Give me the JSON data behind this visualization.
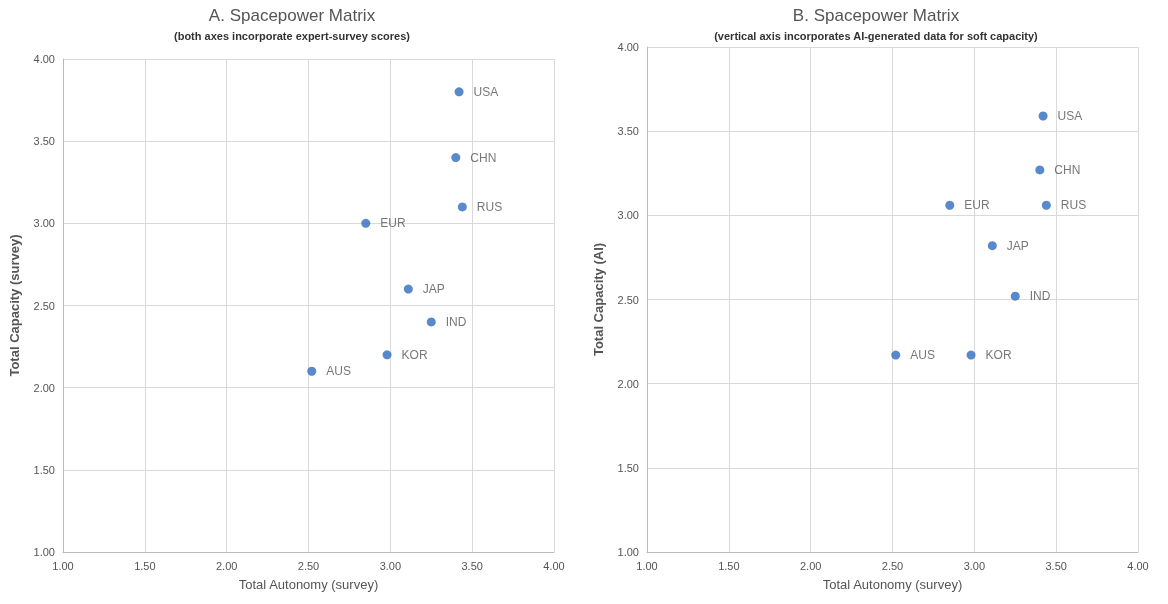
{
  "chart_data": [
    {
      "type": "scatter",
      "title": "A. Spacepower Matrix",
      "subtitle": "(both axes incorporate expert-survey scores)",
      "xlabel": "Total Autonomy (survey)",
      "ylabel": "Total Capacity (survey)",
      "xlim": [
        1,
        4
      ],
      "ylim": [
        1,
        4
      ],
      "xticks": [
        {
          "value": 1,
          "label": "1.00"
        },
        {
          "value": 1.5,
          "label": "1.50"
        },
        {
          "value": 2,
          "label": "2.00"
        },
        {
          "value": 2.5,
          "label": "2.50"
        },
        {
          "value": 3,
          "label": "3.00"
        },
        {
          "value": 3.5,
          "label": "3.50"
        },
        {
          "value": 4,
          "label": "4.00"
        }
      ],
      "yticks": [
        {
          "value": 1,
          "label": "1.00"
        },
        {
          "value": 1.5,
          "label": "1.50"
        },
        {
          "value": 2,
          "label": "2.00"
        },
        {
          "value": 2.5,
          "label": "2.50"
        },
        {
          "value": 3,
          "label": "3.00"
        },
        {
          "value": 3.5,
          "label": "3.50"
        },
        {
          "value": 4,
          "label": "4.00"
        }
      ],
      "grid": true,
      "legend": false,
      "marker": "circle",
      "series": [
        {
          "name": "USA",
          "color": "#2e6bbf",
          "x": [
            3.42
          ],
          "values": [
            3.8
          ]
        },
        {
          "name": "CHN",
          "color": "#2e6bbf",
          "x": [
            3.4
          ],
          "values": [
            3.4
          ]
        },
        {
          "name": "RUS",
          "color": "#2e6bbf",
          "x": [
            3.44
          ],
          "values": [
            3.1
          ]
        },
        {
          "name": "EUR",
          "color": "#2e6bbf",
          "x": [
            2.85
          ],
          "values": [
            3.0
          ]
        },
        {
          "name": "JAP",
          "color": "#2e6bbf",
          "x": [
            3.11
          ],
          "values": [
            2.6
          ]
        },
        {
          "name": "IND",
          "color": "#2e6bbf",
          "x": [
            3.25
          ],
          "values": [
            2.4
          ]
        },
        {
          "name": "KOR",
          "color": "#2e6bbf",
          "x": [
            2.98
          ],
          "values": [
            2.2
          ]
        },
        {
          "name": "AUS",
          "color": "#2e6bbf",
          "x": [
            2.52
          ],
          "values": [
            2.1
          ]
        }
      ]
    },
    {
      "type": "scatter",
      "title": "B. Spacepower Matrix",
      "subtitle": "(vertical axis incorporates AI-generated data for soft capacity)",
      "xlabel": "Total Autonomy (survey)",
      "ylabel": "Total Capacity (AI)",
      "xlim": [
        1,
        4
      ],
      "ylim": [
        1,
        4
      ],
      "xticks": [
        {
          "value": 1,
          "label": "1.00"
        },
        {
          "value": 1.5,
          "label": "1.50"
        },
        {
          "value": 2,
          "label": "2.00"
        },
        {
          "value": 2.5,
          "label": "2.50"
        },
        {
          "value": 3,
          "label": "3.00"
        },
        {
          "value": 3.5,
          "label": "3.50"
        },
        {
          "value": 4,
          "label": "4.00"
        }
      ],
      "yticks": [
        {
          "value": 1,
          "label": "1.00"
        },
        {
          "value": 1.5,
          "label": "1.50"
        },
        {
          "value": 2,
          "label": "2.00"
        },
        {
          "value": 2.5,
          "label": "2.50"
        },
        {
          "value": 3,
          "label": "3.00"
        },
        {
          "value": 3.5,
          "label": "3.50"
        },
        {
          "value": 4,
          "label": "4.00"
        }
      ],
      "grid": true,
      "legend": false,
      "marker": "circle",
      "series": [
        {
          "name": "USA",
          "color": "#2e6bbf",
          "x": [
            3.42
          ],
          "values": [
            3.59
          ]
        },
        {
          "name": "CHN",
          "color": "#2e6bbf",
          "x": [
            3.4
          ],
          "values": [
            3.27
          ]
        },
        {
          "name": "RUS",
          "color": "#2e6bbf",
          "x": [
            3.44
          ],
          "values": [
            3.06
          ]
        },
        {
          "name": "EUR",
          "color": "#2e6bbf",
          "x": [
            2.85
          ],
          "values": [
            3.06
          ]
        },
        {
          "name": "JAP",
          "color": "#2e6bbf",
          "x": [
            3.11
          ],
          "values": [
            2.82
          ]
        },
        {
          "name": "IND",
          "color": "#2e6bbf",
          "x": [
            3.25
          ],
          "values": [
            2.52
          ]
        },
        {
          "name": "KOR",
          "color": "#2e6bbf",
          "x": [
            2.98
          ],
          "values": [
            2.17
          ]
        },
        {
          "name": "AUS",
          "color": "#2e6bbf",
          "x": [
            2.52
          ],
          "values": [
            2.17
          ]
        }
      ]
    }
  ]
}
